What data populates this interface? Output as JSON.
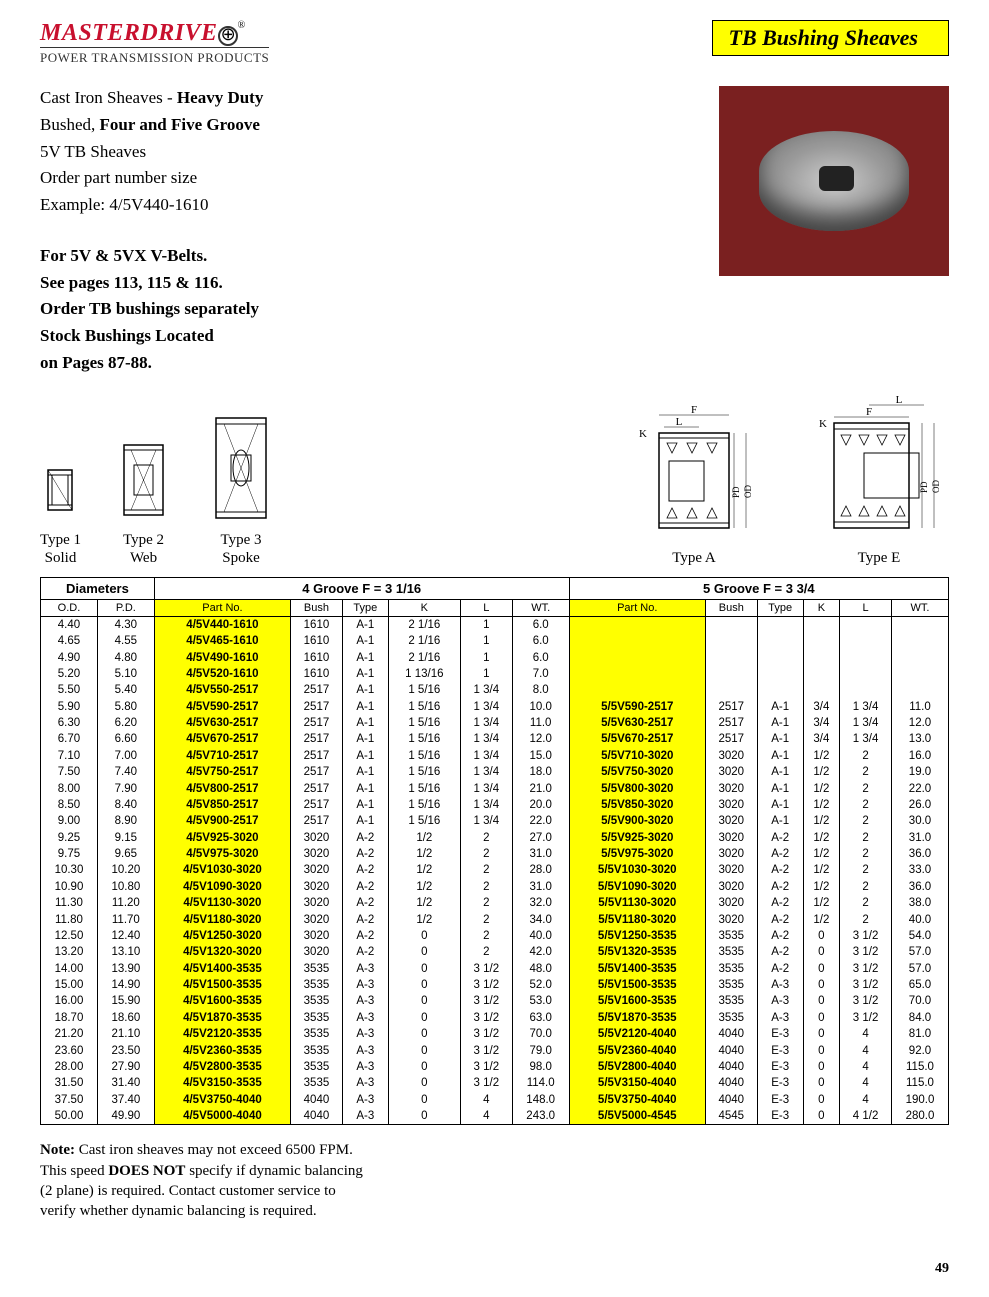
{
  "header": {
    "brand": "MASTERDRIVE",
    "reg": "®",
    "tagline": "POWER TRANSMISSION PRODUCTS",
    "pageTitle": "TB Bushing Sheaves"
  },
  "description": {
    "line1a": "Cast Iron Sheaves - ",
    "line1b": "Heavy Duty",
    "line2a": "Bushed, ",
    "line2b": "Four and Five Groove",
    "line3": "5V TB Sheaves",
    "line4": "Order part number size",
    "line5": "Example: 4/5V440-1610",
    "para2_l1": "For 5V & 5VX V-Belts.",
    "para2_l2": "See pages 113, 115 & 116.",
    "para2_l3": "Order TB bushings separately",
    "para2_l4": "Stock Bushings Located",
    "para2_l5": "on Pages 87-88."
  },
  "typeLabels": {
    "t1a": "Type 1",
    "t1b": "Solid",
    "t2a": "Type 2",
    "t2b": "Web",
    "t3a": "Type 3",
    "t3b": "Spoke",
    "tA": "Type A",
    "tE": "Type E"
  },
  "table": {
    "groupHeaders": {
      "diam": "Diameters",
      "g4": "4 Groove F = 3 1/16",
      "g5": "5 Groove  F = 3 3/4"
    },
    "colHeaders": [
      "O.D.",
      "P.D.",
      "Part No.",
      "Bush",
      "Type",
      "K",
      "L",
      "WT.",
      "Part No.",
      "Bush",
      "Type",
      "K",
      "L",
      "WT."
    ],
    "rows": [
      [
        "4.40",
        "4.30",
        "4/5V440-1610",
        "1610",
        "A-1",
        "2 1/16",
        "1",
        "6.0",
        "",
        "",
        "",
        "",
        "",
        ""
      ],
      [
        "4.65",
        "4.55",
        "4/5V465-1610",
        "1610",
        "A-1",
        "2 1/16",
        "1",
        "6.0",
        "",
        "",
        "",
        "",
        "",
        ""
      ],
      [
        "4.90",
        "4.80",
        "4/5V490-1610",
        "1610",
        "A-1",
        "2 1/16",
        "1",
        "6.0",
        "",
        "",
        "",
        "",
        "",
        ""
      ],
      [
        "5.20",
        "5.10",
        "4/5V520-1610",
        "1610",
        "A-1",
        "1 13/16",
        "1",
        "7.0",
        "",
        "",
        "",
        "",
        "",
        ""
      ],
      [
        "5.50",
        "5.40",
        "4/5V550-2517",
        "2517",
        "A-1",
        "1 5/16",
        "1 3/4",
        "8.0",
        "",
        "",
        "",
        "",
        "",
        ""
      ],
      [
        "5.90",
        "5.80",
        "4/5V590-2517",
        "2517",
        "A-1",
        "1 5/16",
        "1 3/4",
        "10.0",
        "5/5V590-2517",
        "2517",
        "A-1",
        "3/4",
        "1 3/4",
        "11.0"
      ],
      [
        "6.30",
        "6.20",
        "4/5V630-2517",
        "2517",
        "A-1",
        "1 5/16",
        "1 3/4",
        "11.0",
        "5/5V630-2517",
        "2517",
        "A-1",
        "3/4",
        "1 3/4",
        "12.0"
      ],
      [
        "6.70",
        "6.60",
        "4/5V670-2517",
        "2517",
        "A-1",
        "1 5/16",
        "1 3/4",
        "12.0",
        "5/5V670-2517",
        "2517",
        "A-1",
        "3/4",
        "1 3/4",
        "13.0"
      ],
      [
        "7.10",
        "7.00",
        "4/5V710-2517",
        "2517",
        "A-1",
        "1 5/16",
        "1 3/4",
        "15.0",
        "5/5V710-3020",
        "3020",
        "A-1",
        "1/2",
        "2",
        "16.0"
      ],
      [
        "7.50",
        "7.40",
        "4/5V750-2517",
        "2517",
        "A-1",
        "1 5/16",
        "1 3/4",
        "18.0",
        "5/5V750-3020",
        "3020",
        "A-1",
        "1/2",
        "2",
        "19.0"
      ],
      [
        "8.00",
        "7.90",
        "4/5V800-2517",
        "2517",
        "A-1",
        "1 5/16",
        "1 3/4",
        "21.0",
        "5/5V800-3020",
        "3020",
        "A-1",
        "1/2",
        "2",
        "22.0"
      ],
      [
        "8.50",
        "8.40",
        "4/5V850-2517",
        "2517",
        "A-1",
        "1 5/16",
        "1 3/4",
        "20.0",
        "5/5V850-3020",
        "3020",
        "A-1",
        "1/2",
        "2",
        "26.0"
      ],
      [
        "9.00",
        "8.90",
        "4/5V900-2517",
        "2517",
        "A-1",
        "1 5/16",
        "1 3/4",
        "22.0",
        "5/5V900-3020",
        "3020",
        "A-1",
        "1/2",
        "2",
        "30.0"
      ],
      [
        "9.25",
        "9.15",
        "4/5V925-3020",
        "3020",
        "A-2",
        "1/2",
        "2",
        "27.0",
        "5/5V925-3020",
        "3020",
        "A-2",
        "1/2",
        "2",
        "31.0"
      ],
      [
        "9.75",
        "9.65",
        "4/5V975-3020",
        "3020",
        "A-2",
        "1/2",
        "2",
        "31.0",
        "5/5V975-3020",
        "3020",
        "A-2",
        "1/2",
        "2",
        "36.0"
      ],
      [
        "10.30",
        "10.20",
        "4/5V1030-3020",
        "3020",
        "A-2",
        "1/2",
        "2",
        "28.0",
        "5/5V1030-3020",
        "3020",
        "A-2",
        "1/2",
        "2",
        "33.0"
      ],
      [
        "10.90",
        "10.80",
        "4/5V1090-3020",
        "3020",
        "A-2",
        "1/2",
        "2",
        "31.0",
        "5/5V1090-3020",
        "3020",
        "A-2",
        "1/2",
        "2",
        "36.0"
      ],
      [
        "11.30",
        "11.20",
        "4/5V1130-3020",
        "3020",
        "A-2",
        "1/2",
        "2",
        "32.0",
        "5/5V1130-3020",
        "3020",
        "A-2",
        "1/2",
        "2",
        "38.0"
      ],
      [
        "11.80",
        "11.70",
        "4/5V1180-3020",
        "3020",
        "A-2",
        "1/2",
        "2",
        "34.0",
        "5/5V1180-3020",
        "3020",
        "A-2",
        "1/2",
        "2",
        "40.0"
      ],
      [
        "12.50",
        "12.40",
        "4/5V1250-3020",
        "3020",
        "A-2",
        "0",
        "2",
        "40.0",
        "5/5V1250-3535",
        "3535",
        "A-2",
        "0",
        "3 1/2",
        "54.0"
      ],
      [
        "13.20",
        "13.10",
        "4/5V1320-3020",
        "3020",
        "A-2",
        "0",
        "2",
        "42.0",
        "5/5V1320-3535",
        "3535",
        "A-2",
        "0",
        "3 1/2",
        "57.0"
      ],
      [
        "14.00",
        "13.90",
        "4/5V1400-3535",
        "3535",
        "A-3",
        "0",
        "3 1/2",
        "48.0",
        "5/5V1400-3535",
        "3535",
        "A-2",
        "0",
        "3 1/2",
        "57.0"
      ],
      [
        "15.00",
        "14.90",
        "4/5V1500-3535",
        "3535",
        "A-3",
        "0",
        "3 1/2",
        "52.0",
        "5/5V1500-3535",
        "3535",
        "A-3",
        "0",
        "3 1/2",
        "65.0"
      ],
      [
        "16.00",
        "15.90",
        "4/5V1600-3535",
        "3535",
        "A-3",
        "0",
        "3 1/2",
        "53.0",
        "5/5V1600-3535",
        "3535",
        "A-3",
        "0",
        "3 1/2",
        "70.0"
      ],
      [
        "18.70",
        "18.60",
        "4/5V1870-3535",
        "3535",
        "A-3",
        "0",
        "3 1/2",
        "63.0",
        "5/5V1870-3535",
        "3535",
        "A-3",
        "0",
        "3 1/2",
        "84.0"
      ],
      [
        "21.20",
        "21.10",
        "4/5V2120-3535",
        "3535",
        "A-3",
        "0",
        "3 1/2",
        "70.0",
        "5/5V2120-4040",
        "4040",
        "E-3",
        "0",
        "4",
        "81.0"
      ],
      [
        "23.60",
        "23.50",
        "4/5V2360-3535",
        "3535",
        "A-3",
        "0",
        "3 1/2",
        "79.0",
        "5/5V2360-4040",
        "4040",
        "E-3",
        "0",
        "4",
        "92.0"
      ],
      [
        "28.00",
        "27.90",
        "4/5V2800-3535",
        "3535",
        "A-3",
        "0",
        "3 1/2",
        "98.0",
        "5/5V2800-4040",
        "4040",
        "E-3",
        "0",
        "4",
        "115.0"
      ],
      [
        "31.50",
        "31.40",
        "4/5V3150-3535",
        "3535",
        "A-3",
        "0",
        "3 1/2",
        "114.0",
        "5/5V3150-4040",
        "4040",
        "E-3",
        "0",
        "4",
        "115.0"
      ],
      [
        "37.50",
        "37.40",
        "4/5V3750-4040",
        "4040",
        "A-3",
        "0",
        "4",
        "148.0",
        "5/5V3750-4040",
        "4040",
        "E-3",
        "0",
        "4",
        "190.0"
      ],
      [
        "50.00",
        "49.90",
        "4/5V5000-4040",
        "4040",
        "A-3",
        "0",
        "4",
        "243.0",
        "5/5V5000-4545",
        "4545",
        "E-3",
        "0",
        "4 1/2",
        "280.0"
      ]
    ]
  },
  "note": {
    "l1a": "Note:",
    "l1b": " Cast iron sheaves may not exceed 6500 FPM.",
    "l2a": "This speed ",
    "l2b": "DOES NOT",
    "l2c": " specify if dynamic balancing",
    "l3": "(2 plane) is required. Contact customer service to",
    "l4": "verify whether dynamic balancing is required."
  },
  "pageNum": "49"
}
